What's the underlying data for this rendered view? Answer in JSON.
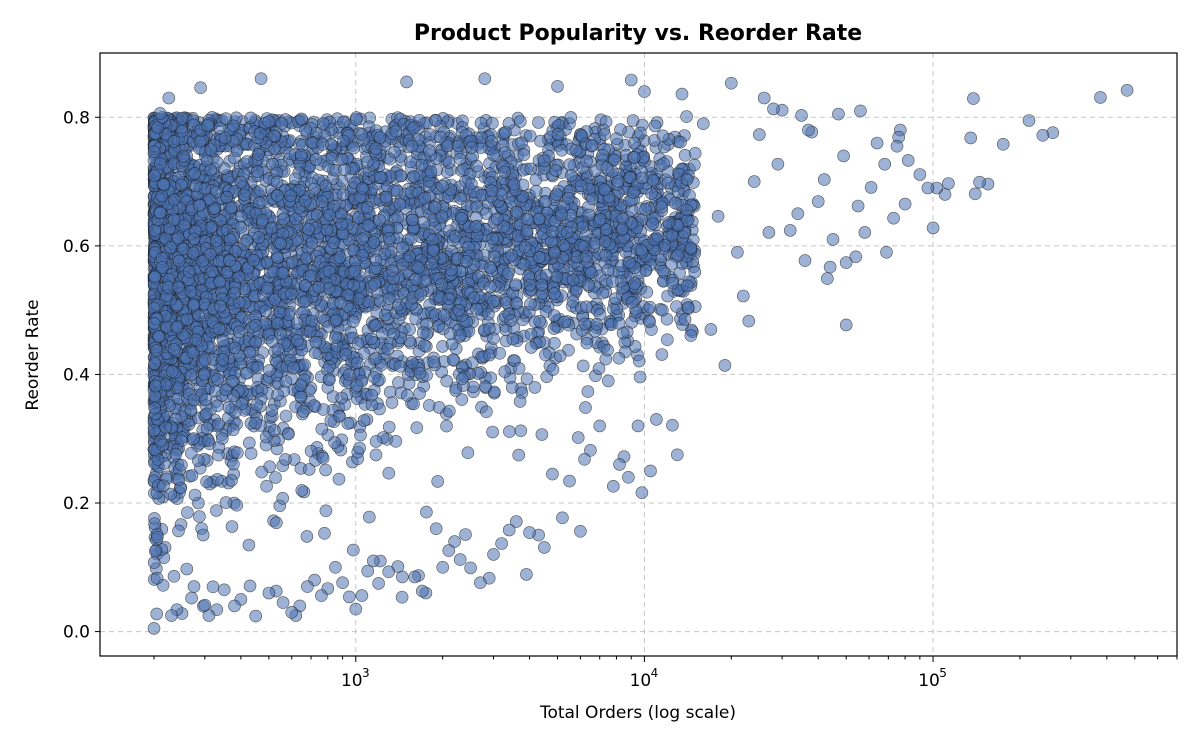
{
  "chart_data": {
    "type": "scatter",
    "title": "Product Popularity vs. Reorder Rate",
    "xlabel": "Total Orders (log scale)",
    "ylabel": "Reorder Rate",
    "x_scale": "log",
    "xlim": [
      130,
      700000
    ],
    "ylim": [
      -0.038,
      0.9
    ],
    "x_ticks": [
      {
        "value": 1000,
        "base": "10",
        "exp": "3"
      },
      {
        "value": 10000,
        "base": "10",
        "exp": "4"
      },
      {
        "value": 100000,
        "base": "10",
        "exp": "5"
      }
    ],
    "y_ticks": [
      {
        "value": 0.0,
        "label": "0.0"
      },
      {
        "value": 0.2,
        "label": "0.2"
      },
      {
        "value": 0.4,
        "label": "0.4"
      },
      {
        "value": 0.6,
        "label": "0.6"
      },
      {
        "value": 0.8,
        "label": "0.8"
      }
    ],
    "grid": true,
    "marker_color": "#4c72b0",
    "marker_edge_color": "#1a1a1a",
    "points": [
      [
        200,
        0.005
      ],
      [
        470000,
        0.842
      ],
      [
        380000,
        0.831
      ],
      [
        260000,
        0.776
      ],
      [
        240000,
        0.772
      ],
      [
        215000,
        0.795
      ],
      [
        175000,
        0.758
      ],
      [
        155000,
        0.696
      ],
      [
        145000,
        0.699
      ],
      [
        140000,
        0.681
      ],
      [
        138000,
        0.829
      ],
      [
        135000,
        0.768
      ],
      [
        113000,
        0.697
      ],
      [
        110000,
        0.68
      ],
      [
        103000,
        0.69
      ],
      [
        100000,
        0.628
      ],
      [
        96000,
        0.69
      ],
      [
        90000,
        0.711
      ],
      [
        82000,
        0.733
      ],
      [
        80000,
        0.665
      ],
      [
        77000,
        0.78
      ],
      [
        76000,
        0.769
      ],
      [
        75000,
        0.755
      ],
      [
        73000,
        0.643
      ],
      [
        69000,
        0.59
      ],
      [
        68000,
        0.727
      ],
      [
        64000,
        0.76
      ],
      [
        61000,
        0.691
      ],
      [
        58000,
        0.621
      ],
      [
        56000,
        0.81
      ],
      [
        55000,
        0.662
      ],
      [
        54000,
        0.583
      ],
      [
        50000,
        0.477
      ],
      [
        50000,
        0.574
      ],
      [
        49000,
        0.74
      ],
      [
        47000,
        0.805
      ],
      [
        45000,
        0.61
      ],
      [
        44000,
        0.567
      ],
      [
        43000,
        0.549
      ],
      [
        42000,
        0.703
      ],
      [
        40000,
        0.669
      ],
      [
        38000,
        0.777
      ],
      [
        37000,
        0.78
      ],
      [
        36000,
        0.577
      ],
      [
        35000,
        0.803
      ],
      [
        34000,
        0.65
      ],
      [
        32000,
        0.624
      ],
      [
        30000,
        0.811
      ],
      [
        29000,
        0.727
      ],
      [
        28000,
        0.813
      ],
      [
        27000,
        0.621
      ],
      [
        26000,
        0.83
      ],
      [
        25000,
        0.773
      ],
      [
        24000,
        0.7
      ],
      [
        23000,
        0.483
      ],
      [
        22000,
        0.522
      ],
      [
        21000,
        0.59
      ],
      [
        20000,
        0.853
      ],
      [
        19000,
        0.414
      ],
      [
        18000,
        0.646
      ],
      [
        17000,
        0.47
      ],
      [
        16000,
        0.79
      ],
      [
        15000,
        0.744
      ],
      [
        14000,
        0.801
      ],
      [
        13500,
        0.836
      ],
      [
        13000,
        0.275
      ],
      [
        12500,
        0.321
      ],
      [
        12000,
        0.454
      ],
      [
        11500,
        0.431
      ],
      [
        11000,
        0.33
      ],
      [
        10500,
        0.25
      ],
      [
        10000,
        0.84
      ],
      [
        9800,
        0.216
      ],
      [
        9500,
        0.32
      ],
      [
        9000,
        0.858
      ],
      [
        8800,
        0.24
      ],
      [
        8500,
        0.272
      ],
      [
        8200,
        0.26
      ],
      [
        7800,
        0.226
      ],
      [
        7500,
        0.39
      ],
      [
        7000,
        0.32
      ],
      [
        6500,
        0.282
      ],
      [
        6200,
        0.268
      ],
      [
        6000,
        0.156
      ],
      [
        5500,
        0.234
      ],
      [
        5200,
        0.177
      ],
      [
        5000,
        0.848
      ],
      [
        4800,
        0.245
      ],
      [
        4500,
        0.131
      ],
      [
        4300,
        0.15
      ],
      [
        4000,
        0.154
      ],
      [
        3900,
        0.089
      ],
      [
        3600,
        0.171
      ],
      [
        3400,
        0.158
      ],
      [
        3200,
        0.137
      ],
      [
        3000,
        0.12
      ],
      [
        2900,
        0.083
      ],
      [
        2800,
        0.86
      ],
      [
        2700,
        0.076
      ],
      [
        2500,
        0.099
      ],
      [
        2400,
        0.151
      ],
      [
        2300,
        0.112
      ],
      [
        2200,
        0.14
      ],
      [
        2100,
        0.126
      ],
      [
        2000,
        0.1
      ],
      [
        1900,
        0.16
      ],
      [
        1750,
        0.06
      ],
      [
        1700,
        0.063
      ],
      [
        1650,
        0.087
      ],
      [
        1600,
        0.085
      ],
      [
        1500,
        0.855
      ],
      [
        1450,
        0.085
      ],
      [
        1400,
        0.101
      ],
      [
        1300,
        0.093
      ],
      [
        1200,
        0.075
      ],
      [
        1150,
        0.11
      ],
      [
        1100,
        0.094
      ],
      [
        1050,
        0.056
      ],
      [
        1000,
        0.035
      ],
      [
        950,
        0.054
      ],
      [
        900,
        0.076
      ],
      [
        850,
        0.1
      ],
      [
        800,
        0.067
      ],
      [
        760,
        0.056
      ],
      [
        720,
        0.08
      ],
      [
        680,
        0.07
      ],
      [
        640,
        0.04
      ],
      [
        620,
        0.025
      ],
      [
        600,
        0.03
      ],
      [
        560,
        0.045
      ],
      [
        530,
        0.063
      ],
      [
        500,
        0.06
      ],
      [
        470,
        0.86
      ],
      [
        450,
        0.024
      ],
      [
        430,
        0.071
      ],
      [
        400,
        0.05
      ],
      [
        380,
        0.04
      ],
      [
        350,
        0.065
      ],
      [
        330,
        0.034
      ],
      [
        310,
        0.025
      ],
      [
        300,
        0.041
      ],
      [
        290,
        0.846
      ],
      [
        270,
        0.052
      ],
      [
        250,
        0.028
      ],
      [
        240,
        0.034
      ],
      [
        230,
        0.025
      ],
      [
        225,
        0.83
      ],
      [
        215,
        0.072
      ],
      [
        210,
        0.806
      ],
      [
        205,
        0.083
      ],
      [
        202,
        0.125
      ]
    ]
  }
}
